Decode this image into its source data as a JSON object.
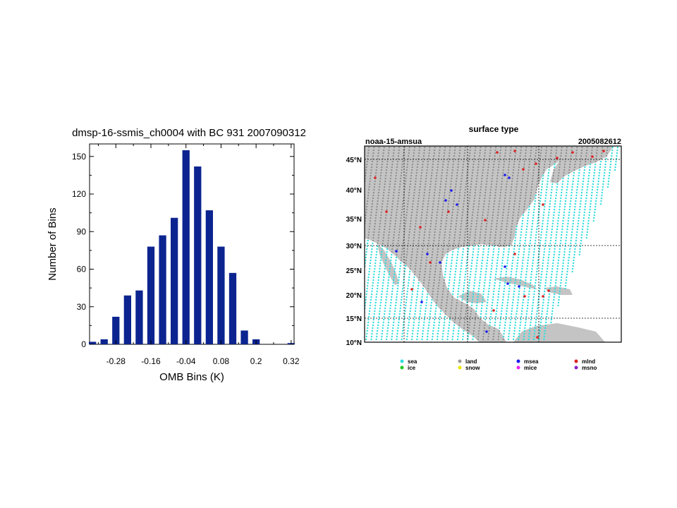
{
  "chart_data": [
    {
      "type": "bar",
      "title": "dmsp-16-ssmis_ch0004 with BC  931   2007090312",
      "xlabel": "OMB Bins (K)",
      "ylabel": "Number of Bins",
      "x_ticks": [
        "-0.28",
        "-0.16",
        "-0.04",
        "0.08",
        "0.2",
        "0.32"
      ],
      "y_ticks": [
        "0",
        "30",
        "60",
        "90",
        "120",
        "150"
      ],
      "ylim": [
        0,
        160
      ],
      "bar_color": "#0b2490",
      "bins": [
        -0.36,
        -0.32,
        -0.28,
        -0.24,
        -0.2,
        -0.16,
        -0.12,
        -0.08,
        -0.04,
        0.0,
        0.04,
        0.08,
        0.12,
        0.16,
        0.2,
        0.24,
        0.28,
        0.32
      ],
      "values": [
        2,
        4,
        22,
        39,
        43,
        78,
        87,
        101,
        155,
        142,
        107,
        78,
        57,
        11,
        4,
        0,
        0,
        1
      ]
    },
    {
      "type": "map",
      "title": "surface type",
      "left_label": "noaa-15-amsua",
      "right_label": "2005082612",
      "lat_labels": [
        "45°N",
        "40°N",
        "35°N",
        "30°N",
        "25°N",
        "20°N",
        "15°N",
        "10°N"
      ],
      "legend": [
        {
          "label": "sea",
          "color": "#33dddd"
        },
        {
          "label": "ice",
          "color": "#22cc22"
        },
        {
          "label": "land",
          "color": "#999999"
        },
        {
          "label": "snow",
          "color": "#e8e800"
        },
        {
          "label": "msea",
          "color": "#1a1aee"
        },
        {
          "label": "mice",
          "color": "#ee22ee"
        },
        {
          "label": "mlnd",
          "color": "#dd2222"
        },
        {
          "label": "msno",
          "color": "#8822cc"
        }
      ]
    }
  ]
}
